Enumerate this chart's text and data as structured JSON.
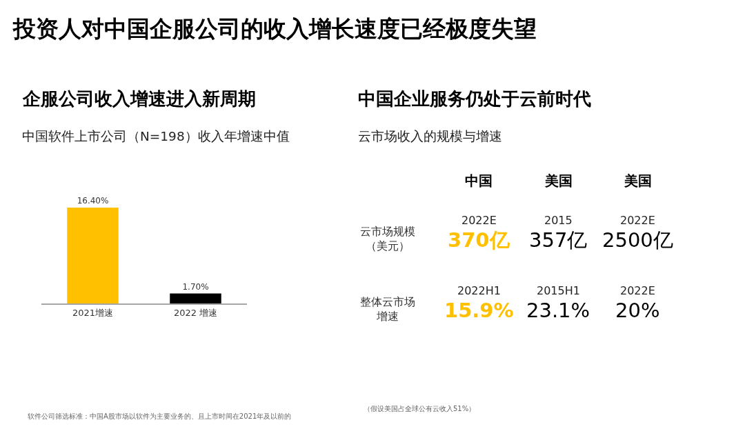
{
  "chart_data": [
    {
      "type": "other",
      "title": "投资人对中国企服公司的收入增长速度已经极度失望"
    },
    {
      "type": "bar",
      "title": "企服公司收入增速进入新周期",
      "subtitle": "中国软件上市公司（N=198）收入年增速中值",
      "categories": [
        "2021增速",
        "2022 增速"
      ],
      "values": [
        16.4,
        1.7
      ],
      "colors": [
        "#ffc000",
        "#000000"
      ],
      "value_labels": [
        "16.40%",
        "1.70%"
      ],
      "tick_labels": "x",
      "annotations": [
        "软件公司筛选标准：中国A股市场以软件为主要业务的、且上市时间在2021年及以前的"
      ]
    },
    {
      "type": "other",
      "title": "中国企业服务仍处于云前时代",
      "subtitle": "云市场收入的规模与增速",
      "categories": [
        "中国",
        "美国",
        "美国"
      ],
      "y_categories": [
        "云市场规模（美元）",
        "整体云市场增速"
      ],
      "cell_labels": [
        [
          "2022E\n370亿",
          "2015\n357亿",
          "2022E\n2500亿"
        ],
        [
          "2022H1\n15.9%",
          "2015H1\n23.1%",
          "2022E\n20%"
        ]
      ],
      "colors": [
        "#ffc000",
        "#000000",
        "#000000"
      ],
      "annotations": [
        "（假设美国占全球公有云收入51%）"
      ]
    }
  ]
}
